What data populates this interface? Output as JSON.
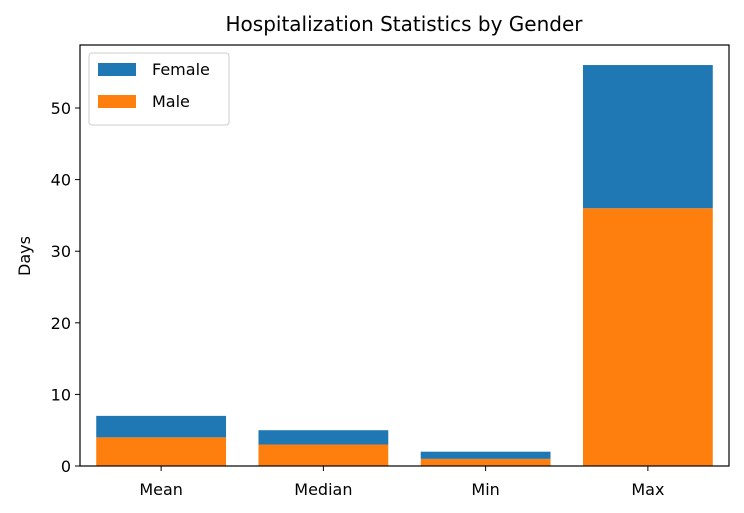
{
  "chart_data": {
    "type": "bar",
    "stacked": true,
    "title": "Hospitalization Statistics by Gender",
    "xlabel": "",
    "ylabel": "Days",
    "categories": [
      "Mean",
      "Median",
      "Min",
      "Max"
    ],
    "series": [
      {
        "name": "Male",
        "values": [
          4,
          3,
          1,
          36
        ],
        "color": "#ff7f0e"
      },
      {
        "name": "Female",
        "values": [
          3,
          2,
          1,
          20
        ],
        "color": "#1f77b4"
      }
    ],
    "ylim": [
      0,
      58.8
    ],
    "yticks": [
      0,
      10,
      20,
      30,
      40,
      50
    ],
    "legend": {
      "position": "top-left",
      "entries": [
        "Female",
        "Male"
      ]
    },
    "grid": false
  }
}
